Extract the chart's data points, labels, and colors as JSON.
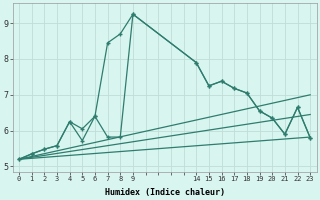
{
  "xlabel": "Humidex (Indice chaleur)",
  "bg_color": "#d9f5f0",
  "line_color": "#2e7d6e",
  "grid_color": "#c0ddd8",
  "xlim": [
    -0.5,
    23.5
  ],
  "ylim": [
    4.85,
    9.55
  ],
  "xtick_positions": [
    0,
    1,
    2,
    3,
    4,
    5,
    6,
    7,
    8,
    9,
    14,
    15,
    16,
    17,
    18,
    19,
    20,
    21,
    22,
    23
  ],
  "xtick_labels": [
    "0",
    "1",
    "2",
    "3",
    "4",
    "5",
    "6",
    "7",
    "8",
    "9",
    "14",
    "15",
    "16",
    "17",
    "18",
    "19",
    "20",
    "21",
    "22",
    "23"
  ],
  "ytick_positions": [
    5,
    6,
    7,
    8,
    9
  ],
  "ytick_labels": [
    "5",
    "6",
    "7",
    "8",
    "9"
  ],
  "line1_x": [
    0,
    1,
    2,
    3,
    4,
    5,
    6,
    7,
    8,
    9,
    14,
    15,
    16,
    17,
    18,
    19,
    20,
    21,
    22,
    23
  ],
  "line1_y": [
    5.2,
    5.35,
    5.48,
    5.58,
    6.25,
    5.72,
    6.4,
    5.82,
    5.82,
    9.25,
    7.9,
    7.25,
    7.38,
    7.18,
    7.05,
    6.55,
    6.35,
    5.9,
    6.65,
    5.8
  ],
  "line2_x": [
    0,
    1,
    2,
    3,
    4,
    5,
    6,
    7,
    8,
    9,
    14,
    15,
    16,
    17,
    18,
    19,
    20,
    21,
    22,
    23
  ],
  "line2_y": [
    5.2,
    5.35,
    5.48,
    5.58,
    6.25,
    6.05,
    6.4,
    8.45,
    8.7,
    9.25,
    7.9,
    7.25,
    7.38,
    7.18,
    7.05,
    6.55,
    6.35,
    5.9,
    6.65,
    5.8
  ],
  "line3_x": [
    0,
    23
  ],
  "line3_y": [
    5.2,
    7.0
  ],
  "line4_x": [
    0,
    23
  ],
  "line4_y": [
    5.2,
    6.45
  ],
  "line5_x": [
    0,
    23
  ],
  "line5_y": [
    5.2,
    5.82
  ]
}
